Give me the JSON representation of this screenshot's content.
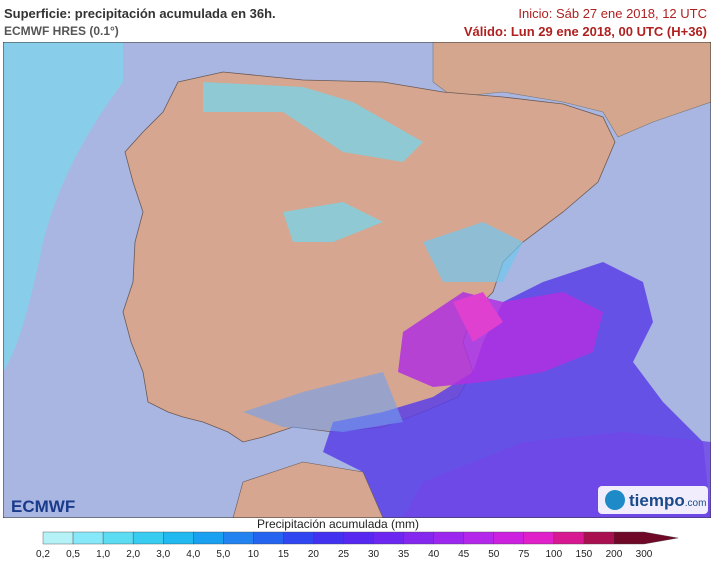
{
  "header": {
    "title": "Superficie: precipitación acumulada en 36h.",
    "subtitle": "ECMWF HRES (0.1°)",
    "start": "Inicio: Sáb 27 ene 2018, 12 UTC",
    "valid": "Válido: Lun 29 ene 2018, 00 UTC (H+36)"
  },
  "logos": {
    "ecmwf": "ECMWF",
    "tiempo": "tiempo",
    "domain": ".com"
  },
  "legend": {
    "title": "Precipitación acumulada (mm)",
    "ticks": [
      "0,2",
      "0,5",
      "1,0",
      "2,0",
      "3,0",
      "4,0",
      "5,0",
      "10",
      "15",
      "20",
      "25",
      "30",
      "35",
      "40",
      "45",
      "50",
      "75",
      "100",
      "150",
      "200",
      "300"
    ],
    "colors": [
      "#b4f2f8",
      "#86e8f8",
      "#5cdcf2",
      "#38ccf0",
      "#22b8f0",
      "#1aa0f0",
      "#2282f0",
      "#2464f0",
      "#3046f0",
      "#4232f0",
      "#5628f0",
      "#6c28f0",
      "#8428f0",
      "#9c28f0",
      "#b428ec",
      "#cc22e0",
      "#e020c8",
      "#d81890",
      "#a81050",
      "#700828"
    ]
  }
}
